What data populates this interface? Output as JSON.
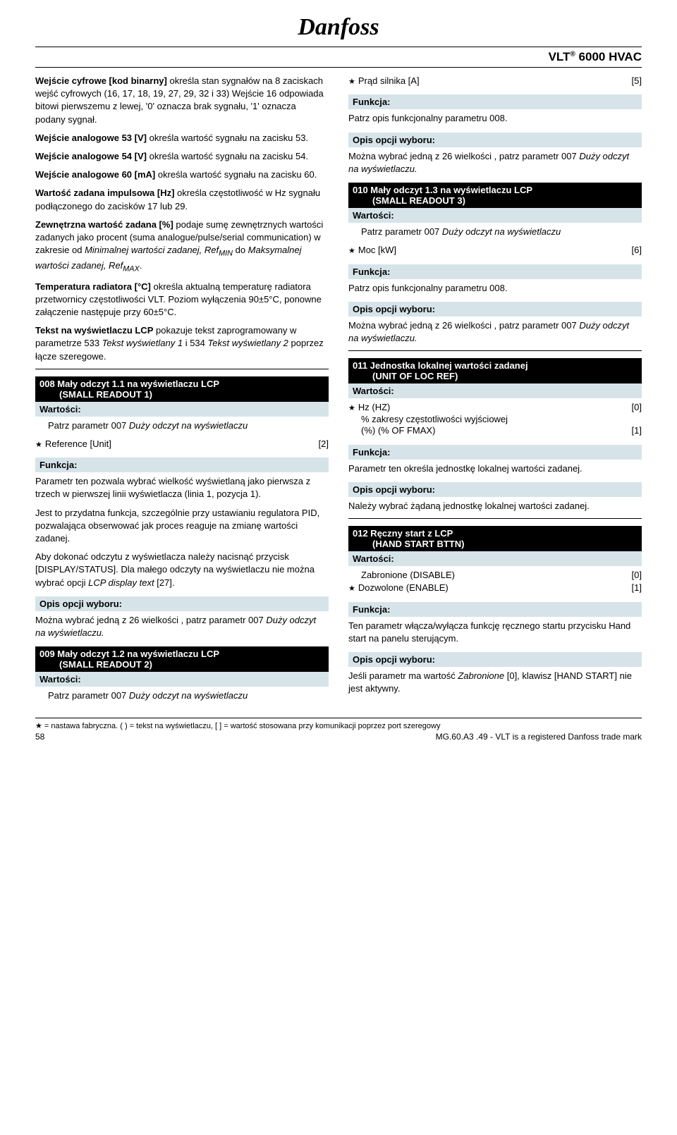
{
  "logo": "Danfoss",
  "product": "VLT® 6000 HVAC",
  "left": {
    "para1_b1": "Wejście cyfrowe [kod binarny]",
    "para1_t1": " określa stan sygnałów na 8 zaciskach wejść cyfrowych (16, 17, 18, 19, 27, 29, 32 i 33) Wejście 16 odpowiada bitowi pierwszemu z lewej, '0' oznacza brak sygnału, '1' oznacza podany sygnał.",
    "para2_b": "Wejście analogowe 53 [V]",
    "para2_t": " określa wartość sygnału na zacisku 53.",
    "para3_b": "Wejście analogowe 54 [V]",
    "para3_t": " określa wartość sygnału na zacisku 54.",
    "para4_b": "Wejście analogowe 60 [mA]",
    "para4_t": " określa wartość sygnału na zacisku 60.",
    "para5_b": "Wartość zadana impulsowa [Hz]",
    "para5_t": " określa częstotliwość w Hz sygnału podłączonego do zacisków 17 lub 29.",
    "para6_b": "Zewnętrzna wartość zadana [%]",
    "para6_t1": " podaje sumę zewnętrznych wartości zadanych jako procent (suma analogue/pulse/serial communication) w zakresie od ",
    "para6_i1": "Minimalnej wartości zadanej, Ref",
    "para6_sub1": "MIN",
    "para6_t2": " do ",
    "para6_i2": "Maksymalnej wartości zadanej, Ref",
    "para6_sub2": "MAX",
    "para6_t3": ".",
    "para7_b": "Temperatura radiatora [°C]",
    "para7_t": " określa aktualną temperaturę radiatora przetwornicy częstotliwości VLT. Poziom wyłączenia 90±5°C, ponowne załączenie następuje przy 60±5°C.",
    "para8_b": "Tekst na wyświetlaczu LCP",
    "para8_t1": " pokazuje tekst zaprogramowany w parametrze 533 ",
    "para8_i1": "Tekst wyświetlany 1",
    "para8_t2": " i 534 ",
    "para8_i2": "Tekst wyświetlany 2",
    "para8_t3": " poprzez łącze szeregowe.",
    "p008_title": "008  Mały odczyt 1.1 na wyświetlaczu LCP",
    "p008_sub": "(SMALL READOUT 1)",
    "wartosci": "Wartości:",
    "p008_val": "Patrz parametr 007 ",
    "p008_val_i": "Duży odczyt na wyświetlaczu",
    "ref_unit": "Reference [Unit]",
    "ref_unit_v": "[2]",
    "funkcja": "Funkcja:",
    "p008_f1": "Parametr ten pozwala wybrać wielkość wyświetlaną jako pierwsza z trzech w pierwszej linii wyświetlacza (linia 1, pozycja 1).",
    "p008_f2": "Jest to przydatna funkcja, szczególnie przy ustawianiu regulatora PID, pozwalająca obserwować jak proces reaguje na zmianę wartości zadanej.",
    "p008_f3a": "Aby dokonać odczytu z wyświetlacza należy nacisnąć przycisk [DISPLAY/STATUS]. Dla małego odczyty na wyświetlaczu nie można wybrać opcji ",
    "p008_f3b": "LCP display text",
    "p008_f3c": " [27].",
    "opis": "Opis opcji wyboru:",
    "p008_o1": "Można wybrać jedną z 26 wielkości , patrz parametr 007 ",
    "p008_o1i": "Duży odczyt na wyświetlaczu.",
    "p009_title": "009  Mały odczyt 1.2 na wyświetlaczu LCP",
    "p009_sub": "(SMALL READOUT 2)",
    "p009_val": "Patrz parametr 007 ",
    "p009_val_i": "Duży odczyt na wyświetlaczu"
  },
  "right": {
    "prad": "Prąd silnika [A]",
    "prad_v": "[5]",
    "funkcja": "Funkcja:",
    "r_f1": "Patrz opis funkcjonalny parametru 008.",
    "opis": "Opis opcji wyboru:",
    "r_o1": "Można wybrać jedną z 26 wielkości , patrz parametr 007 ",
    "r_o1i": "Duży odczyt na wyświetlaczu.",
    "p010_title": "010  Mały odczyt  1.3 na wyświetlaczu LCP",
    "p010_sub": "(SMALL READOUT 3)",
    "wartosci": "Wartości:",
    "p010_val": "Patrz parametr 007 ",
    "p010_val_i": "Duży odczyt na wyświetlaczu",
    "moc": "Moc [kW]",
    "moc_v": "[6]",
    "p010_f": "Patrz opis funkcjonalny parametru 008.",
    "p010_o": "Można wybrać jedną z 26 wielkości , patrz parametr 007 ",
    "p010_oi": "Duży odczyt na wyświetlaczu.",
    "p011_title": "011   Jednostka lokalnej wartości zadanej",
    "p011_sub": "(UNIT OF LOC REF)",
    "hz": "Hz (HZ)",
    "hz_v": "[0]",
    "pct1": "% zakresy częstotliwości wyjściowej",
    "pct2": "(%) (% OF FMAX)",
    "pct_v": "[1]",
    "p011_f": "Parametr ten określa jednostkę lokalnej wartości zadanej.",
    "p011_o": "Należy wybrać żądaną jednostkę lokalnej wartości zadanej.",
    "p012_title": "012  Ręczny start z LCP",
    "p012_sub": "(HAND START BTTN)",
    "zab": "Zabronione (DISABLE)",
    "zab_v": "[0]",
    "doz": "Dozwolone (ENABLE)",
    "doz_v": "[1]",
    "p012_f": "Ten parametr włącza/wyłącza funkcję ręcznego startu przycisku Hand start na panelu sterującym.",
    "p012_o1": "Jeśli parametr ma wartość ",
    "p012_o1i": "Zabronione",
    "p012_o2": " [0], klawisz [HAND START] nie jest aktywny."
  },
  "footer1": "★ = nastawa  fabryczna. ( ) = tekst na wyświetlaczu, [ ] = wartość stosowana przy komunikacji poprzez port szeregowy",
  "pagenum": "58",
  "footer2": "MG.60.A3 .49 - VLT is a registered Danfoss trade mark"
}
